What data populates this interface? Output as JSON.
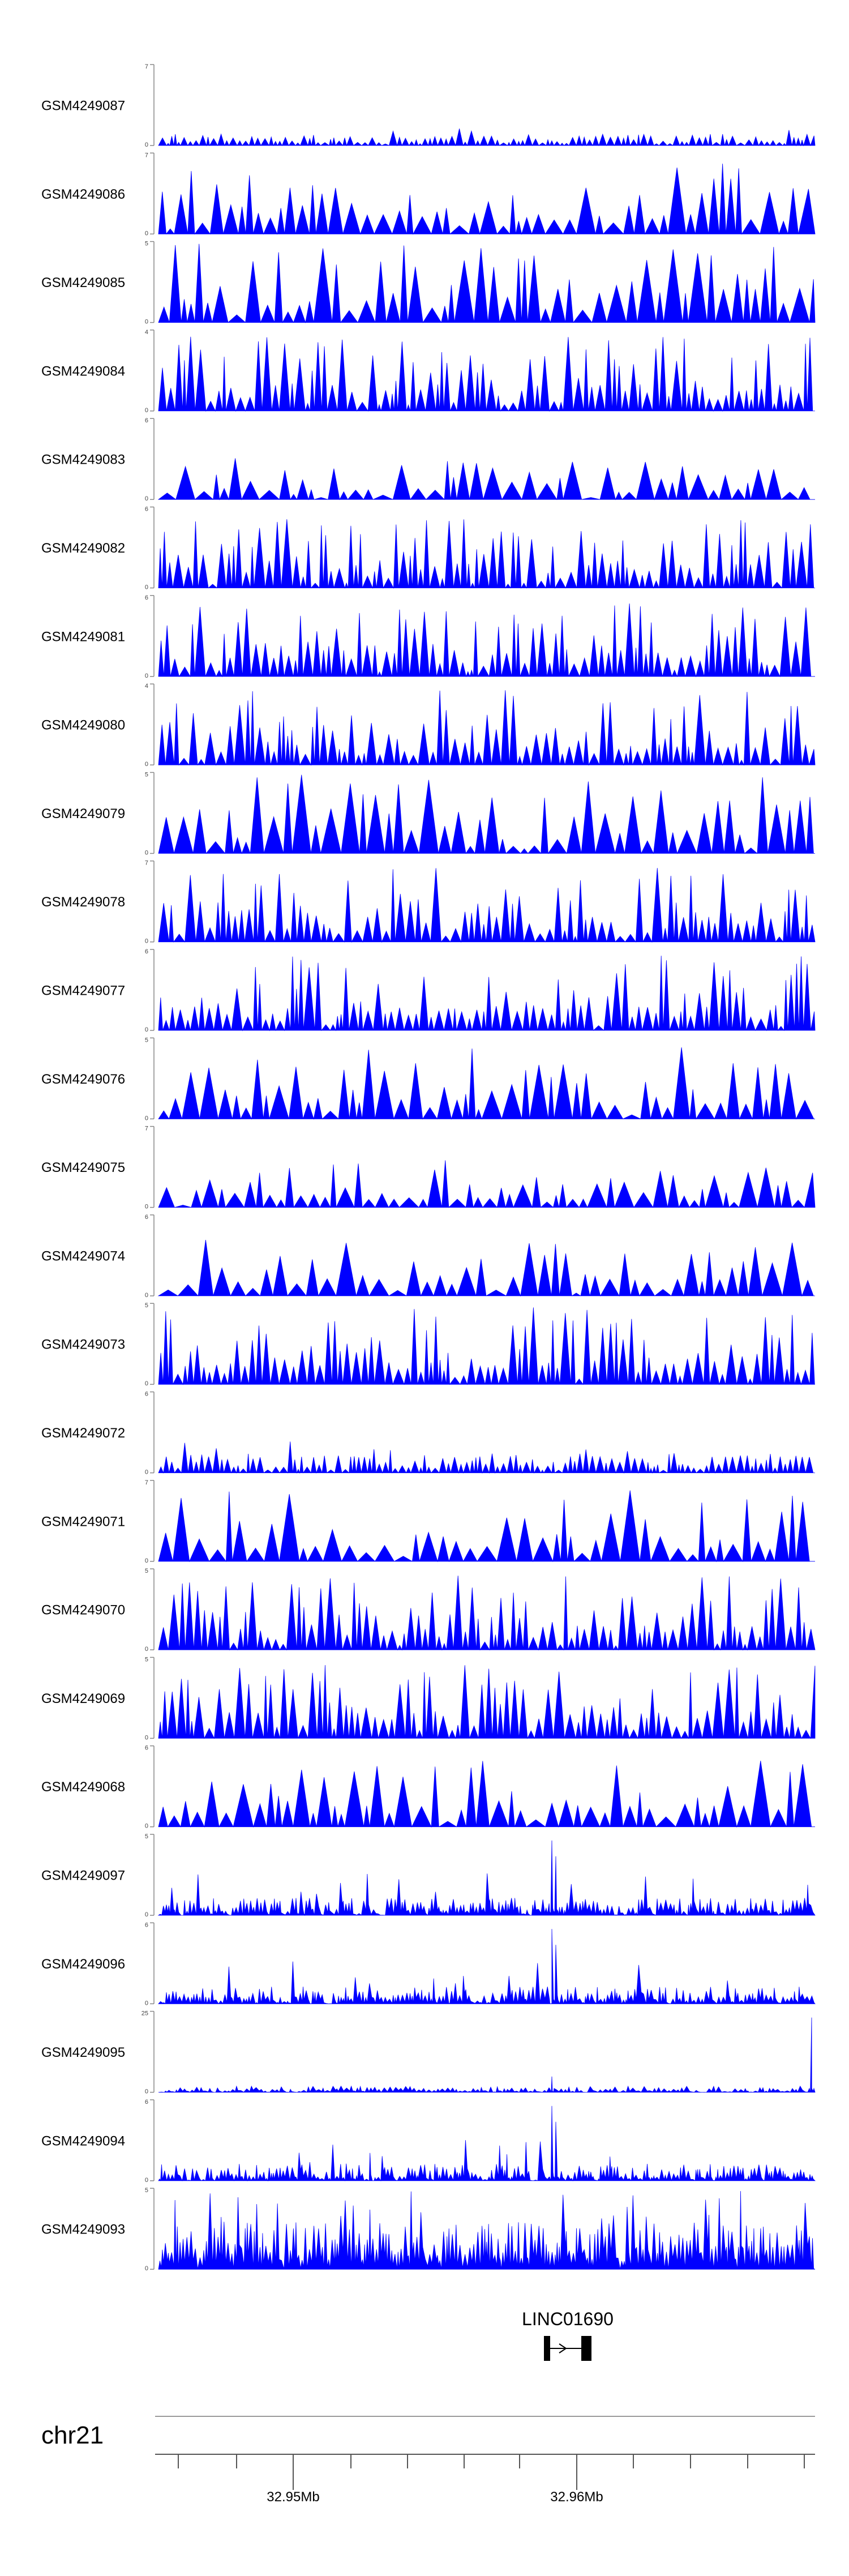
{
  "chart_data": {
    "type": "area",
    "chromosome": "chr21",
    "gene": {
      "name": "LINC01690",
      "strand": "+"
    },
    "x_tick_labels": [
      "32.95Mb",
      "32.96Mb"
    ],
    "color": "#0000ff",
    "tracks": [
      {
        "sample": "GSM4249087",
        "ymax": "7",
        "ymin": "0",
        "profile": "noisy-peaks",
        "tall": 0.18,
        "seed": 11
      },
      {
        "sample": "GSM4249086",
        "ymax": "7",
        "ymin": "0",
        "profile": "sparse-peaks",
        "tall": 0.85,
        "seed": 12
      },
      {
        "sample": "GSM4249085",
        "ymax": "5",
        "ymin": "0",
        "profile": "sparse-peaks",
        "tall": 0.95,
        "seed": 13
      },
      {
        "sample": "GSM4249084",
        "ymax": "4",
        "ymin": "0",
        "profile": "dense-peaks",
        "tall": 0.9,
        "seed": 14
      },
      {
        "sample": "GSM4249083",
        "ymax": "6",
        "ymin": "0",
        "profile": "sparse-peaks",
        "tall": 0.5,
        "seed": 15
      },
      {
        "sample": "GSM4249082",
        "ymax": "6",
        "ymin": "0",
        "profile": "dense-peaks",
        "tall": 0.85,
        "seed": 16
      },
      {
        "sample": "GSM4249081",
        "ymax": "6",
        "ymin": "0",
        "profile": "dense-peaks",
        "tall": 0.9,
        "seed": 17
      },
      {
        "sample": "GSM4249080",
        "ymax": "4",
        "ymin": "0",
        "profile": "dense-peaks",
        "tall": 0.9,
        "seed": 18
      },
      {
        "sample": "GSM4249079",
        "ymax": "5",
        "ymin": "0",
        "profile": "sparse-peaks",
        "tall": 0.95,
        "seed": 19
      },
      {
        "sample": "GSM4249078",
        "ymax": "7",
        "ymin": "0",
        "profile": "dense-peaks",
        "tall": 0.9,
        "seed": 20
      },
      {
        "sample": "GSM4249077",
        "ymax": "6",
        "ymin": "0",
        "profile": "dense-peaks",
        "tall": 0.9,
        "seed": 21
      },
      {
        "sample": "GSM4249076",
        "ymax": "5",
        "ymin": "0",
        "profile": "sparse-peaks",
        "tall": 0.9,
        "seed": 22
      },
      {
        "sample": "GSM4249075",
        "ymax": "7",
        "ymin": "0",
        "profile": "sparse-peaks",
        "tall": 0.55,
        "seed": 23
      },
      {
        "sample": "GSM4249074",
        "ymax": "6",
        "ymin": "0",
        "profile": "sparse-peaks",
        "tall": 0.7,
        "seed": 24
      },
      {
        "sample": "GSM4249073",
        "ymax": "5",
        "ymin": "0",
        "profile": "dense-peaks",
        "tall": 0.95,
        "seed": 25
      },
      {
        "sample": "GSM4249072",
        "ymax": "6",
        "ymin": "0",
        "profile": "noisy-peaks",
        "tall": 0.35,
        "seed": 26
      },
      {
        "sample": "GSM4249071",
        "ymax": "7",
        "ymin": "0",
        "profile": "sparse-peaks",
        "tall": 0.9,
        "seed": 27
      },
      {
        "sample": "GSM4249070",
        "ymax": "5",
        "ymin": "0",
        "profile": "dense-peaks",
        "tall": 0.9,
        "seed": 28
      },
      {
        "sample": "GSM4249069",
        "ymax": "5",
        "ymin": "0",
        "profile": "dense-peaks",
        "tall": 0.9,
        "seed": 29
      },
      {
        "sample": "GSM4249068",
        "ymax": "6",
        "ymin": "0",
        "profile": "sparse-peaks",
        "tall": 0.85,
        "seed": 30
      },
      {
        "sample": "GSM4249097",
        "ymax": "5",
        "ymin": "0",
        "profile": "signal",
        "tall": 0.25,
        "seed": 31
      },
      {
        "sample": "GSM4249096",
        "ymax": "6",
        "ymin": "0",
        "profile": "signal",
        "tall": 0.2,
        "seed": 32
      },
      {
        "sample": "GSM4249095",
        "ymax": "25",
        "ymin": "0",
        "profile": "low-signal",
        "tall": 0.15,
        "seed": 33
      },
      {
        "sample": "GSM4249094",
        "ymax": "6",
        "ymin": "0",
        "profile": "signal",
        "tall": 0.3,
        "seed": 34
      },
      {
        "sample": "GSM4249093",
        "ymax": "5",
        "ymin": "0",
        "profile": "dense-signal",
        "tall": 0.75,
        "seed": 35
      }
    ]
  }
}
